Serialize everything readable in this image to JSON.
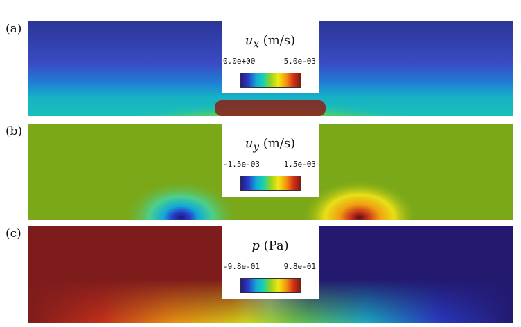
{
  "panels": [
    {
      "label": "(a)",
      "symbol": "u",
      "sub": "x",
      "unit": " (m/s)",
      "min_label": "0.0e+00",
      "max_label": "5.0e-03"
    },
    {
      "label": "(b)",
      "symbol": "u",
      "sub": "y",
      "unit": " (m/s)",
      "min_label": "-1.5e-03",
      "max_label": "1.5e-03"
    },
    {
      "label": "(c)",
      "symbol": "p",
      "sub": "",
      "unit": " (Pa)",
      "min_label": "-9.8e-01",
      "max_label": "9.8e-01"
    }
  ],
  "colormap": [
    "#231a8a",
    "#2a3cc8",
    "#12a8d8",
    "#19d2b0",
    "#9ad41a",
    "#f2e814",
    "#f29a10",
    "#d63214",
    "#7a1a16"
  ]
}
